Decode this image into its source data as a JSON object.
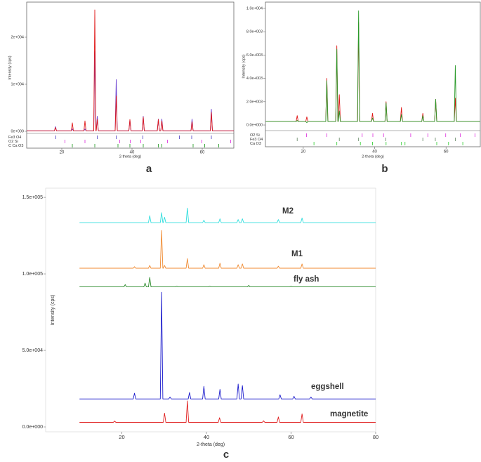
{
  "chart_data": [
    {
      "type": "line",
      "panel": "a",
      "xlabel": "2-theta (deg)",
      "ylabel": "Intensity (cps)",
      "xlim": [
        10,
        69
      ],
      "ylim": [
        -450,
        27460
      ],
      "xticks": [
        20,
        40,
        60
      ],
      "yticks": [
        {
          "value": 0,
          "label": "0e+000"
        },
        {
          "value": 10000,
          "label": "1e+004"
        },
        {
          "value": 20000,
          "label": "2e+004"
        }
      ],
      "series": [
        {
          "color": "#6a40d0",
          "x": [
            10,
            17.9,
            18.2,
            18.5,
            22.7,
            23,
            23.3,
            26.3,
            26.6,
            26.9,
            29.1,
            29.4,
            29.7,
            29.8,
            30.1,
            30.4,
            35.2,
            35.5,
            35.8,
            39.1,
            39.4,
            39.7,
            42.9,
            43.2,
            43.5,
            47.2,
            47.5,
            47.8,
            48.2,
            48.5,
            48.8,
            56.8,
            57.1,
            57.4,
            62.3,
            62.6,
            62.9,
            69
          ],
          "values": [
            100,
            100,
            1000,
            100,
            100,
            500,
            100,
            100,
            500,
            100,
            100,
            17000,
            100,
            100,
            3200,
            100,
            100,
            11000,
            100,
            100,
            2400,
            100,
            100,
            3200,
            100,
            100,
            2600,
            100,
            100,
            2600,
            100,
            100,
            2600,
            100,
            100,
            4700,
            100,
            100
          ]
        },
        {
          "color": "#e01818",
          "x": [
            10,
            17.9,
            18.2,
            18.5,
            22.7,
            23,
            23.3,
            26.3,
            26.6,
            26.9,
            29.1,
            29.4,
            29.7,
            29.8,
            30.1,
            30.4,
            35.2,
            35.5,
            35.8,
            39.1,
            39.4,
            39.7,
            42.9,
            43.2,
            43.5,
            47.2,
            47.5,
            47.8,
            48.2,
            48.5,
            48.8,
            56.8,
            57.1,
            57.4,
            62.3,
            62.6,
            62.9,
            69
          ],
          "values": [
            100,
            100,
            800,
            100,
            100,
            1800,
            100,
            100,
            2200,
            100,
            100,
            25800,
            100,
            100,
            2500,
            100,
            100,
            7500,
            100,
            100,
            2500,
            100,
            100,
            3000,
            100,
            100,
            2500,
            100,
            100,
            2200,
            100,
            100,
            2000,
            100,
            100,
            4000,
            100,
            100
          ]
        }
      ],
      "phases": [
        {
          "name": "Fe3 O4",
          "color": "#5b4fc8",
          "positions": [
            18.3,
            30.1,
            35.5,
            43.1,
            53.5,
            57,
            62.6
          ]
        },
        {
          "name": "O2 Si",
          "color": "#e040e0",
          "positions": [
            20.9,
            26.6,
            36.5,
            39.5,
            42.5,
            50.1,
            59.9,
            68.1
          ]
        },
        {
          "name": "C Ca O3",
          "color": "#30a030",
          "positions": [
            23,
            29.4,
            36,
            39.4,
            43.2,
            47.5,
            48.5,
            57.4,
            60.7,
            64.7
          ]
        }
      ]
    },
    {
      "type": "line",
      "panel": "b",
      "xlabel": "2-theta (deg)",
      "ylabel": "Intensity (cps)",
      "xlim": [
        9.4,
        69.6
      ],
      "ylim": [
        -480,
        10540
      ],
      "xticks": [
        20,
        40,
        60
      ],
      "yticks": [
        {
          "value": 0,
          "label": "0.0e+000"
        },
        {
          "value": 2000,
          "label": "2.0e+003"
        },
        {
          "value": 4000,
          "label": "4.0e+003"
        },
        {
          "value": 6000,
          "label": "6.0e+003"
        },
        {
          "value": 8000,
          "label": "8.0e+003"
        },
        {
          "value": 10000,
          "label": "1.0e+004"
        }
      ],
      "series": [
        {
          "color": "#e01818",
          "x": [
            9.5,
            18,
            18.3,
            18.6,
            20.7,
            21,
            21.3,
            26.3,
            26.6,
            26.9,
            29.1,
            29.4,
            29.7,
            29.8,
            30.1,
            30.4,
            35.2,
            35.5,
            35.8,
            39.1,
            39.4,
            39.7,
            42.9,
            43.2,
            43.5,
            47.2,
            47.5,
            47.8,
            53.2,
            53.5,
            53.8,
            56.8,
            57.1,
            57.4,
            62.3,
            62.6,
            62.9,
            69.5
          ],
          "values": [
            300,
            300,
            800,
            300,
            300,
            700,
            300,
            300,
            4000,
            300,
            300,
            6800,
            300,
            300,
            2600,
            300,
            300,
            8800,
            300,
            300,
            1000,
            300,
            300,
            2000,
            300,
            300,
            1500,
            300,
            300,
            1000,
            300,
            300,
            2200,
            300,
            300,
            2300,
            300,
            300
          ]
        },
        {
          "color": "#2a9a2a",
          "x": [
            9.5,
            18,
            18.3,
            18.6,
            20.7,
            21,
            21.3,
            26.3,
            26.6,
            26.9,
            29.1,
            29.4,
            29.7,
            29.8,
            30.1,
            30.4,
            35.2,
            35.5,
            35.8,
            39.1,
            39.4,
            39.7,
            42.9,
            43.2,
            43.5,
            47.2,
            47.5,
            47.8,
            53.2,
            53.5,
            53.8,
            56.8,
            57.1,
            57.4,
            62.3,
            62.6,
            62.9,
            69.5
          ],
          "values": [
            300,
            300,
            400,
            300,
            300,
            200,
            300,
            300,
            3800,
            300,
            300,
            6500,
            300,
            300,
            1200,
            300,
            300,
            9800,
            300,
            300,
            600,
            300,
            300,
            1900,
            300,
            300,
            900,
            300,
            300,
            800,
            300,
            300,
            2200,
            300,
            300,
            5100,
            300,
            300
          ]
        }
      ],
      "phases": [
        {
          "name": "O2 Si",
          "color": "#e040e0",
          "positions": [
            20.9,
            26.6,
            36.5,
            39.5,
            42.5,
            50.1,
            54.9,
            59.9,
            64,
            68.1
          ]
        },
        {
          "name": "Fe3 O4",
          "color": "#6f8f6f",
          "positions": [
            18.3,
            30.1,
            35.5,
            43.1,
            53.5,
            57,
            62.6
          ]
        },
        {
          "name": "Ca O3",
          "color": "#40d040",
          "positions": [
            23,
            29.4,
            36,
            39.4,
            43.2,
            47.5,
            48.5,
            57.4,
            60.7,
            64.7
          ]
        }
      ]
    },
    {
      "type": "line",
      "panel": "c",
      "xlabel": "2-theta (deg)",
      "ylabel": "Intensity (cps)",
      "xlim": [
        2,
        80
      ],
      "ylim": [
        -3200,
        156000
      ],
      "xticks": [
        20,
        40,
        60,
        80
      ],
      "yticks": [
        {
          "value": 0,
          "label": "0.0e+000"
        },
        {
          "value": 50000,
          "label": "5.0e+004"
        },
        {
          "value": 100000,
          "label": "1.0e+005"
        },
        {
          "value": 150000,
          "label": "1.5e+005"
        }
      ],
      "series": [
        {
          "name": "magnetite",
          "color": "#e02020",
          "x": [
            10,
            18,
            18.3,
            18.6,
            29.8,
            30.1,
            30.4,
            35.2,
            35.5,
            35.8,
            42.8,
            43.1,
            43.4,
            53.2,
            53.5,
            53.8,
            56.7,
            57,
            57.3,
            62.3,
            62.6,
            62.9,
            80
          ],
          "values": [
            3000,
            3000,
            3800,
            3000,
            3000,
            9000,
            3000,
            3000,
            17000,
            3000,
            3000,
            6000,
            3000,
            3000,
            4000,
            3000,
            3000,
            6500,
            3000,
            3000,
            8500,
            3000,
            3000
          ]
        },
        {
          "name": "eggshell",
          "color": "#1a1acc",
          "x": [
            10,
            22.7,
            23,
            23.3,
            29.1,
            29.4,
            29.7,
            31.1,
            31.4,
            31.7,
            35.7,
            36,
            36.3,
            39.1,
            39.4,
            39.7,
            42.9,
            43.2,
            43.5,
            47.2,
            47.5,
            47.8,
            48.2,
            48.5,
            48.8,
            57.1,
            57.4,
            57.7,
            60.4,
            60.7,
            61,
            64.4,
            64.7,
            65,
            80
          ],
          "values": [
            18300,
            18300,
            22000,
            18300,
            18300,
            88000,
            18300,
            18300,
            19500,
            18300,
            18300,
            22500,
            18300,
            18300,
            26500,
            18300,
            18300,
            24500,
            18300,
            18300,
            28000,
            18300,
            18300,
            27000,
            18300,
            18300,
            21000,
            18300,
            18300,
            20000,
            18300,
            18300,
            19500,
            18300,
            18300
          ]
        },
        {
          "name": "fly ash",
          "color": "#2a8a2a",
          "x": [
            10,
            20.5,
            20.8,
            21.1,
            25.2,
            25.5,
            25.8,
            26.3,
            26.6,
            26.9,
            32.7,
            33,
            33.3,
            40.5,
            40.8,
            41.1,
            49.7,
            50,
            50.3,
            59.7,
            60,
            60.3,
            80
          ],
          "values": [
            91500,
            91500,
            93000,
            91500,
            91500,
            94000,
            91500,
            91500,
            97700,
            91500,
            91500,
            92000,
            91500,
            91500,
            92000,
            91500,
            91500,
            92500,
            91500,
            91500,
            92000,
            91500,
            91500
          ]
        },
        {
          "name": "M1",
          "color": "#f08a30",
          "x": [
            10,
            22.7,
            23,
            23.3,
            26.3,
            26.6,
            26.9,
            29.1,
            29.4,
            29.7,
            29.8,
            30.1,
            30.4,
            35.2,
            35.5,
            35.8,
            39.1,
            39.4,
            39.7,
            42.9,
            43.2,
            43.5,
            47.2,
            47.5,
            47.8,
            48.2,
            48.5,
            48.8,
            56.7,
            57,
            57.3,
            62.3,
            62.6,
            62.9,
            80
          ],
          "values": [
            103700,
            103700,
            104700,
            103700,
            103700,
            105500,
            103700,
            103700,
            128400,
            103700,
            103700,
            105500,
            103700,
            103700,
            110000,
            103700,
            103700,
            106000,
            103700,
            103700,
            107000,
            103700,
            103700,
            106000,
            103700,
            103700,
            106500,
            103700,
            103700,
            105000,
            103700,
            103700,
            106500,
            103700,
            103700
          ]
        },
        {
          "name": "M2",
          "color": "#30dede",
          "x": [
            10,
            26.3,
            26.6,
            26.9,
            29.1,
            29.4,
            29.7,
            29.8,
            30.1,
            30.4,
            35.2,
            35.5,
            35.8,
            39.1,
            39.4,
            39.7,
            42.9,
            43.2,
            43.5,
            47.2,
            47.5,
            47.8,
            48.2,
            48.5,
            48.8,
            56.7,
            57,
            57.3,
            62.3,
            62.6,
            62.9,
            80
          ],
          "values": [
            133500,
            133500,
            138000,
            133500,
            133500,
            140000,
            133500,
            133500,
            137000,
            133500,
            133500,
            143000,
            133500,
            133500,
            135000,
            133500,
            133500,
            136000,
            133500,
            133500,
            135500,
            133500,
            133500,
            136000,
            133500,
            133500,
            135500,
            133500,
            133500,
            136500,
            133500,
            133500
          ]
        }
      ]
    }
  ]
}
